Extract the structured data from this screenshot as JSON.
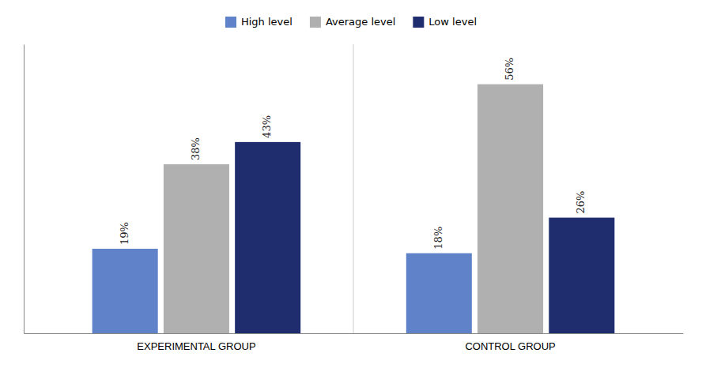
{
  "chart_data": {
    "type": "bar",
    "categories": [
      "EXPERIMENTAL GROUP",
      "CONTROL GROUP"
    ],
    "series": [
      {
        "name": "High level",
        "color": "#6082c8",
        "values": [
          19,
          18
        ],
        "value_labels": [
          "19%",
          "18%"
        ]
      },
      {
        "name": "Average level",
        "color": "#b0b0b0",
        "values": [
          38,
          56
        ],
        "value_labels": [
          "38%",
          "56%"
        ]
      },
      {
        "name": "Low level",
        "color": "#1f2d6e",
        "values": [
          43,
          26
        ],
        "value_labels": [
          "43%",
          "26%"
        ]
      }
    ],
    "ylim": [
      0,
      65
    ],
    "data_labels": true,
    "tick_labels": "x",
    "legend": "top"
  }
}
